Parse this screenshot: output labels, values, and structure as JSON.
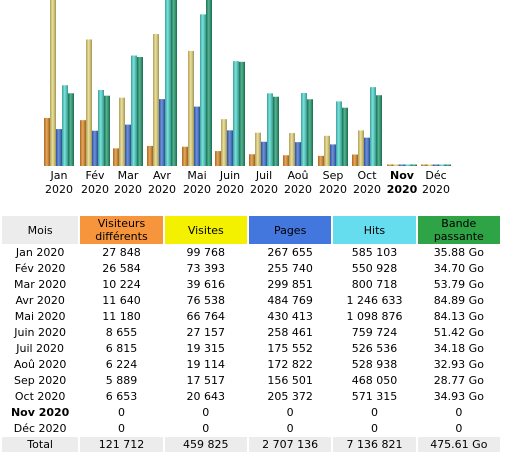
{
  "chart_data": {
    "type": "bar",
    "categories": [
      "Jan 2020",
      "Fév 2020",
      "Mar 2020",
      "Avr 2020",
      "Mai 2020",
      "Juin 2020",
      "Juil 2020",
      "Aoû 2020",
      "Sep 2020",
      "Oct 2020",
      "Nov 2020",
      "Déc 2020"
    ],
    "series": [
      {
        "name": "Visiteurs différents",
        "color": "#e08a28",
        "values": [
          27848,
          26584,
          10224,
          11640,
          11180,
          8655,
          6815,
          6224,
          5889,
          6653,
          0,
          0
        ]
      },
      {
        "name": "Visites",
        "color": "#e6d67a",
        "values": [
          99768,
          73393,
          39616,
          76538,
          66764,
          27157,
          19315,
          19114,
          17517,
          20643,
          0,
          0
        ]
      },
      {
        "name": "Pages",
        "color": "#3e6fd0",
        "values": [
          267655,
          255740,
          299851,
          484769,
          430413,
          258461,
          175552,
          172822,
          156501,
          205372,
          0,
          0
        ]
      },
      {
        "name": "Hits",
        "color": "#4fd9cf",
        "values": [
          585103,
          550928,
          800718,
          1246633,
          1098876,
          759724,
          526536,
          528938,
          468050,
          571315,
          0,
          0
        ]
      },
      {
        "name": "Bande passante",
        "color": "#1f9a6e",
        "values": [
          35.88,
          34.7,
          53.79,
          84.89,
          84.13,
          51.42,
          34.18,
          32.93,
          28.77,
          34.93,
          0,
          0
        ]
      }
    ]
  },
  "month_labels": [
    {
      "m": "Jan",
      "y": "2020"
    },
    {
      "m": "Fév",
      "y": "2020"
    },
    {
      "m": "Mar",
      "y": "2020"
    },
    {
      "m": "Avr",
      "y": "2020"
    },
    {
      "m": "Mai",
      "y": "2020"
    },
    {
      "m": "Juin",
      "y": "2020"
    },
    {
      "m": "Juil",
      "y": "2020"
    },
    {
      "m": "Aoû",
      "y": "2020"
    },
    {
      "m": "Sep",
      "y": "2020"
    },
    {
      "m": "Oct",
      "y": "2020"
    },
    {
      "m": "Nov",
      "y": "2020"
    },
    {
      "m": "Déc",
      "y": "2020"
    }
  ],
  "current_month_index": 10,
  "table": {
    "headers": {
      "mois": "Mois",
      "visitors": "Visiteurs différents",
      "visits": "Visites",
      "pages": "Pages",
      "hits": "Hits",
      "bandwidth": "Bande passante"
    },
    "rows": [
      [
        "Jan 2020",
        "27 848",
        "99 768",
        "267 655",
        "585 103",
        "35.88 Go"
      ],
      [
        "Fév 2020",
        "26 584",
        "73 393",
        "255 740",
        "550 928",
        "34.70 Go"
      ],
      [
        "Mar 2020",
        "10 224",
        "39 616",
        "299 851",
        "800 718",
        "53.79 Go"
      ],
      [
        "Avr 2020",
        "11 640",
        "76 538",
        "484 769",
        "1 246 633",
        "84.89 Go"
      ],
      [
        "Mai 2020",
        "11 180",
        "66 764",
        "430 413",
        "1 098 876",
        "84.13 Go"
      ],
      [
        "Juin 2020",
        "8 655",
        "27 157",
        "258 461",
        "759 724",
        "51.42 Go"
      ],
      [
        "Juil 2020",
        "6 815",
        "19 315",
        "175 552",
        "526 536",
        "34.18 Go"
      ],
      [
        "Aoû 2020",
        "6 224",
        "19 114",
        "172 822",
        "528 938",
        "32.93 Go"
      ],
      [
        "Sep 2020",
        "5 889",
        "17 517",
        "156 501",
        "468 050",
        "28.77 Go"
      ],
      [
        "Oct 2020",
        "6 653",
        "20 643",
        "205 372",
        "571 315",
        "34.93 Go"
      ],
      [
        "Nov 2020",
        "0",
        "0",
        "0",
        "0",
        "0"
      ],
      [
        "Déc 2020",
        "0",
        "0",
        "0",
        "0",
        "0"
      ]
    ],
    "total": [
      "Total",
      "121 712",
      "459 825",
      "2 707 136",
      "7 136 821",
      "475.61 Go"
    ]
  }
}
